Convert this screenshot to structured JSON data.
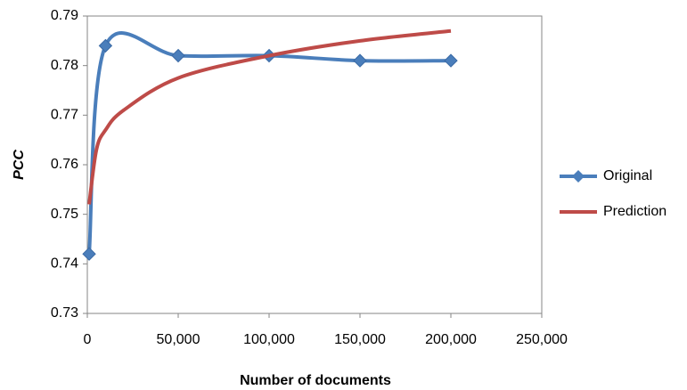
{
  "chart_data": {
    "type": "line",
    "x_label": "Number of documents",
    "y_label": "PCC",
    "xlim": [
      0,
      250000
    ],
    "xticks": [
      0,
      {
        "value": 50000,
        "label": "50,000"
      },
      {
        "value": 100000,
        "label": "100,000"
      },
      {
        "value": 150000,
        "label": "150,000"
      },
      {
        "value": 200000,
        "label": "200,000"
      },
      {
        "value": 250000,
        "label": "250,000"
      }
    ],
    "ylim": [
      0.73,
      0.79
    ],
    "yticks": [
      0.73,
      0.74,
      0.75,
      0.76,
      0.77,
      0.78,
      0.79
    ],
    "grid": false,
    "legend": "right",
    "series": [
      {
        "name": "Original",
        "color": "#4a7ebb",
        "marker": "diamond",
        "x": [
          1000,
          10000,
          50000,
          100000,
          150000,
          200000
        ],
        "values": [
          0.742,
          0.784,
          0.782,
          0.782,
          0.781,
          0.781
        ]
      },
      {
        "name": "Prediction",
        "color": "#be4b48",
        "x": [
          1000,
          5000,
          10000,
          20000,
          50000,
          100000,
          150000,
          200000
        ],
        "values": [
          0.752,
          0.763,
          0.767,
          0.771,
          0.7775,
          0.782,
          0.785,
          0.787
        ]
      }
    ]
  }
}
